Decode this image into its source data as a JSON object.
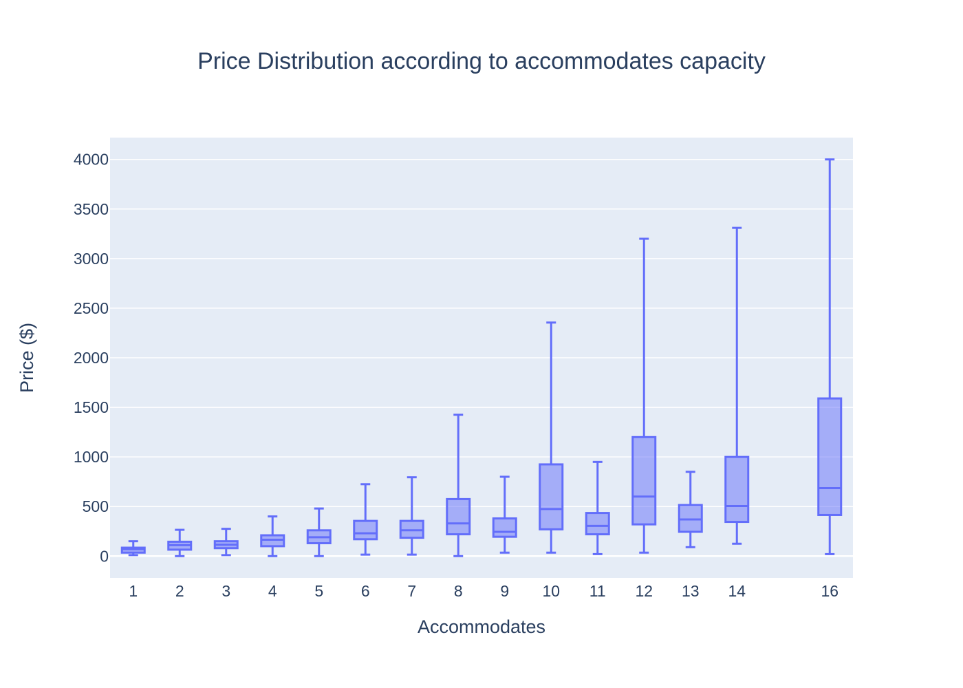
{
  "chart_data": {
    "type": "box",
    "title": "Price Distribution according to accommodates capacity",
    "xlabel": "Accommodates",
    "ylabel": "Price ($)",
    "xlim": [
      0.5,
      16.5
    ],
    "ylim": [
      -220,
      4220
    ],
    "yticks": [
      0,
      500,
      1000,
      1500,
      2000,
      2500,
      3000,
      3500,
      4000
    ],
    "grid": true,
    "legend": "none",
    "colors": {
      "box": "#636efa",
      "plot_bg": "#e5ecf6",
      "text": "#2a3f5f",
      "grid": "#ffffff"
    },
    "boxes": [
      {
        "x": 1,
        "min": 10,
        "q1": 35,
        "median": 70,
        "q3": 85,
        "max": 150
      },
      {
        "x": 2,
        "min": 0,
        "q1": 65,
        "median": 110,
        "q3": 145,
        "max": 265
      },
      {
        "x": 3,
        "min": 10,
        "q1": 80,
        "median": 115,
        "q3": 150,
        "max": 275
      },
      {
        "x": 4,
        "min": 0,
        "q1": 100,
        "median": 165,
        "q3": 210,
        "max": 400
      },
      {
        "x": 5,
        "min": 0,
        "q1": 130,
        "median": 190,
        "q3": 260,
        "max": 480
      },
      {
        "x": 6,
        "min": 15,
        "q1": 170,
        "median": 230,
        "q3": 355,
        "max": 725
      },
      {
        "x": 7,
        "min": 15,
        "q1": 185,
        "median": 260,
        "q3": 355,
        "max": 795
      },
      {
        "x": 8,
        "min": 0,
        "q1": 220,
        "median": 330,
        "q3": 575,
        "max": 1425
      },
      {
        "x": 9,
        "min": 35,
        "q1": 195,
        "median": 245,
        "q3": 380,
        "max": 800
      },
      {
        "x": 10,
        "min": 35,
        "q1": 270,
        "median": 475,
        "q3": 925,
        "max": 2355
      },
      {
        "x": 11,
        "min": 20,
        "q1": 220,
        "median": 305,
        "q3": 435,
        "max": 950
      },
      {
        "x": 12,
        "min": 35,
        "q1": 320,
        "median": 600,
        "q3": 1200,
        "max": 3200
      },
      {
        "x": 13,
        "min": 90,
        "q1": 245,
        "median": 370,
        "q3": 515,
        "max": 850
      },
      {
        "x": 14,
        "min": 125,
        "q1": 345,
        "median": 505,
        "q3": 1000,
        "max": 3310
      },
      {
        "x": 16,
        "min": 20,
        "q1": 415,
        "median": 685,
        "q3": 1590,
        "max": 4000
      }
    ]
  }
}
